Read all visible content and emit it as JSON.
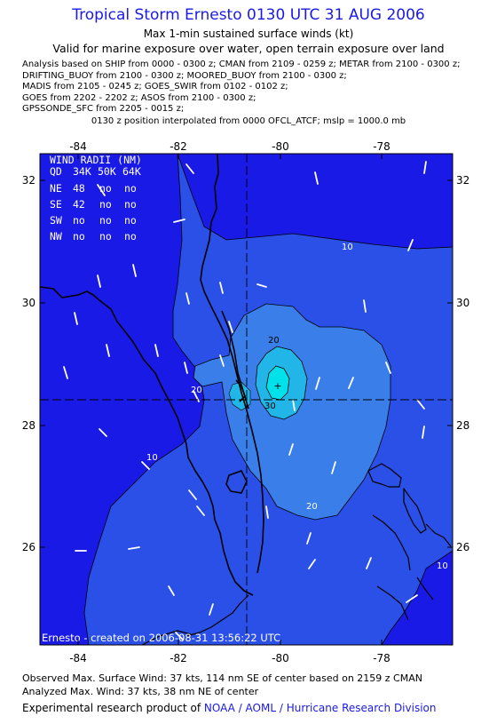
{
  "header": {
    "title": "Tropical Storm Ernesto 0130 UTC 31 AUG 2006",
    "subtitle1": "Max 1-min sustained surface winds (kt)",
    "subtitle2": "Valid for marine exposure over water, open terrain exposure over land"
  },
  "analysis_lines": [
    "Analysis based on  SHIP from 0000 - 0300 z;  CMAN from 2109 - 0259 z;  METAR from 2100 - 0300 z;",
    "DRIFTING_BUOY from 2100 - 0300 z;  MOORED_BUOY from 2100 - 0300 z;",
    "MADIS from 2105 - 0245 z;  GOES_SWIR from 0102 - 0102 z;",
    "GOES from 2202 - 2202 z;  ASOS from 2100 - 0300 z;",
    "GPSSONDE_SFC from 2205 - 0015 z;"
  ],
  "position_line": "0130 z position interpolated from 0000 OFCL_ATCF; mslp = 1000.0 mb",
  "map": {
    "longitude_labels": [
      "-84",
      "-82",
      "-80",
      "-78"
    ],
    "latitude_labels": [
      "32",
      "30",
      "28",
      "26"
    ],
    "contour_labels": [
      "10",
      "20",
      "30",
      "20",
      "10",
      "20",
      "10"
    ],
    "storm_center": {
      "lon": -80.55,
      "lat": 28.4
    },
    "colors": {
      "level_0": "#1a1ae6",
      "level_10": "#2b50e8",
      "level_20": "#3a7eea",
      "level_30": "#22b6e8",
      "level_35": "#00e1ea",
      "line": "#000000",
      "label": "#ffffff"
    },
    "created_text": "Ernesto - created on 2006-08-31 13:56:22 UTC"
  },
  "wind_radii": {
    "title": "WIND RADII (NM)",
    "header": [
      "QD",
      "34K",
      "50K",
      "64K"
    ],
    "rows": [
      [
        "NE",
        "48",
        "no",
        "no"
      ],
      [
        "SE",
        "42",
        "no",
        "no"
      ],
      [
        "SW",
        "no",
        "no",
        "no"
      ],
      [
        "NW",
        "no",
        "no",
        "no"
      ]
    ]
  },
  "footer": {
    "observed": "Observed Max. Surface Wind: 37 kts, 114 nm SE of center based on 2159 z CMAN",
    "analyzed": "Analyzed Max. Wind: 37 kts, 38 nm NE of center",
    "product_prefix": "Experimental research product of ",
    "product_org": "NOAA / AOML / Hurricane Research Division"
  }
}
